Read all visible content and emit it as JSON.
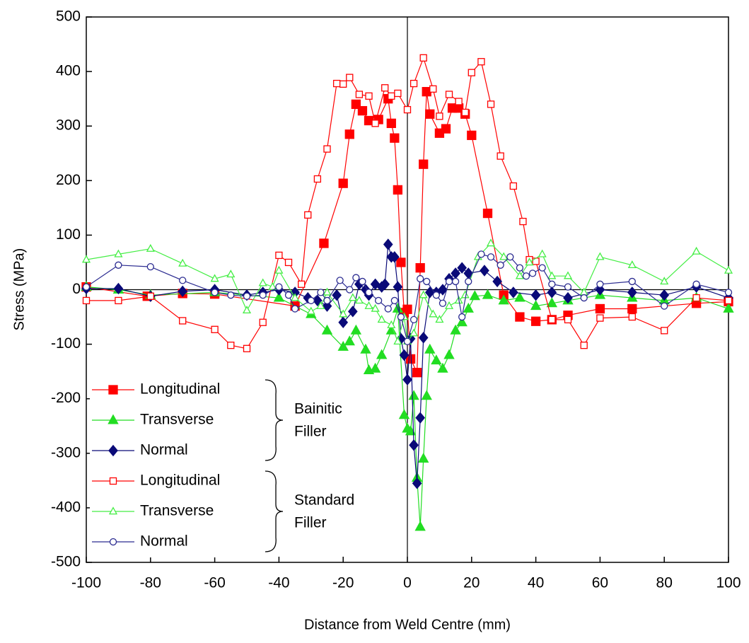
{
  "chart_data": {
    "type": "line",
    "x_label": "Distance from Weld Centre (mm)",
    "y_label": "Stress (MPa)",
    "xlim": [
      -100,
      100
    ],
    "xticks": [
      -100,
      -80,
      -60,
      -40,
      -20,
      0,
      20,
      40,
      60,
      80,
      100
    ],
    "ylim": [
      -500,
      500
    ],
    "yticks": [
      -500,
      -400,
      -300,
      -200,
      -100,
      0,
      100,
      200,
      300,
      400,
      500
    ],
    "legend_groups": [
      {
        "lines": [
          "Bainitic",
          "Filler"
        ],
        "series": [
          0,
          1,
          2
        ]
      },
      {
        "lines": [
          "Standard",
          "Filler"
        ],
        "series": [
          3,
          4,
          5
        ]
      }
    ],
    "series": [
      {
        "name": "Longitudinal",
        "color": "#ff0000",
        "marker": "square",
        "filled": true,
        "x": [
          -100,
          -81,
          -70,
          -60,
          -35,
          -26,
          -20,
          -18,
          -16,
          -14,
          -12,
          -9,
          -6,
          -5,
          -4,
          -3,
          -2,
          -1,
          0,
          1,
          3,
          4,
          5,
          6,
          7,
          10,
          12,
          14,
          16,
          18,
          20,
          25,
          30,
          35,
          40,
          45,
          50,
          60,
          70,
          90,
          100
        ],
        "values": [
          5,
          -12,
          -7,
          -8,
          -30,
          85,
          195,
          285,
          340,
          328,
          310,
          312,
          350,
          305,
          278,
          183,
          50,
          -42,
          -36,
          -127,
          -152,
          40,
          230,
          363,
          322,
          287,
          295,
          333,
          333,
          322,
          283,
          140,
          -10,
          -50,
          -58,
          -55,
          -47,
          -35,
          -35,
          -25,
          -22
        ]
      },
      {
        "name": "Transverse",
        "color": "#22dd22",
        "marker": "triangle",
        "filled": true,
        "x": [
          -100,
          -90,
          -80,
          -60,
          -40,
          -30,
          -25,
          -20,
          -18,
          -16,
          -13,
          -12,
          -10,
          -8,
          -5,
          -3,
          -1,
          0,
          1,
          2,
          3,
          4,
          5,
          6,
          7,
          9,
          11,
          13,
          15,
          17,
          19,
          21,
          25,
          30,
          35,
          40,
          45,
          50,
          60,
          70,
          80,
          90,
          100
        ],
        "values": [
          5,
          0,
          -10,
          -5,
          -15,
          -45,
          -75,
          -105,
          -95,
          -75,
          -110,
          -148,
          -145,
          -120,
          -75,
          -35,
          -230,
          -255,
          -260,
          -195,
          -345,
          -435,
          -310,
          -195,
          -110,
          -130,
          -145,
          -120,
          -75,
          -60,
          -35,
          -12,
          -10,
          -20,
          -15,
          -30,
          -25,
          -20,
          -10,
          -15,
          -20,
          -15,
          -35
        ]
      },
      {
        "name": "Normal",
        "color": "#0a0a78",
        "marker": "diamond",
        "filled": true,
        "x": [
          -100,
          -90,
          -80,
          -70,
          -60,
          -50,
          -45,
          -40,
          -35,
          -31,
          -28,
          -25,
          -22,
          -20,
          -17,
          -15,
          -13,
          -12,
          -10,
          -8,
          -7,
          -6,
          -5,
          -4,
          -3,
          -2,
          -1,
          0,
          1,
          2,
          3,
          4,
          5,
          7,
          9,
          11,
          13,
          15,
          17,
          19,
          24,
          28,
          33,
          40,
          45,
          50,
          60,
          70,
          80,
          90,
          100
        ],
        "values": [
          2,
          2,
          -12,
          -3,
          0,
          -10,
          -5,
          0,
          -5,
          -15,
          -20,
          -30,
          -10,
          -60,
          -40,
          10,
          0,
          -10,
          10,
          5,
          10,
          83,
          60,
          60,
          5,
          -90,
          -120,
          -165,
          -90,
          -285,
          -355,
          -235,
          -88,
          -5,
          -5,
          0,
          20,
          30,
          40,
          30,
          35,
          15,
          -5,
          -10,
          -5,
          -15,
          0,
          -5,
          -10,
          5,
          -15
        ]
      },
      {
        "name": "Longitudinal",
        "color": "#ff0000",
        "marker": "square",
        "filled": false,
        "x": [
          -100,
          -90,
          -80,
          -70,
          -60,
          -55,
          -50,
          -45,
          -40,
          -37,
          -33,
          -31,
          -28,
          -25,
          -22,
          -20,
          -18,
          -15,
          -12,
          -10,
          -7,
          -5,
          -3,
          0,
          2,
          5,
          8,
          10,
          13,
          16,
          18,
          20,
          23,
          26,
          29,
          33,
          36,
          38,
          40,
          45,
          50,
          55,
          60,
          70,
          80,
          90,
          100
        ],
        "values": [
          -20,
          -20,
          -12,
          -57,
          -73,
          -102,
          -108,
          -60,
          63,
          50,
          10,
          137,
          203,
          258,
          378,
          377,
          389,
          358,
          355,
          305,
          370,
          355,
          360,
          330,
          378,
          425,
          368,
          318,
          358,
          345,
          325,
          398,
          418,
          340,
          245,
          190,
          125,
          55,
          52,
          -55,
          -55,
          -102,
          -52,
          -50,
          -75,
          -15,
          -20
        ]
      },
      {
        "name": "Transverse",
        "color": "#44ee44",
        "marker": "triangle",
        "filled": false,
        "x": [
          -100,
          -90,
          -80,
          -70,
          -60,
          -55,
          -50,
          -45,
          -42,
          -40,
          -35,
          -30,
          -27,
          -25,
          -20,
          -17,
          -15,
          -12,
          -10,
          -8,
          -5,
          -3,
          -1,
          0,
          2,
          5,
          8,
          10,
          13,
          16,
          18,
          22,
          26,
          30,
          35,
          38,
          42,
          45,
          50,
          55,
          60,
          70,
          80,
          90,
          100
        ],
        "values": [
          55,
          65,
          75,
          48,
          20,
          28,
          -38,
          12,
          5,
          35,
          -15,
          -40,
          -30,
          -5,
          -45,
          -15,
          -20,
          -30,
          -35,
          -55,
          -65,
          -95,
          -50,
          -95,
          -80,
          -10,
          -45,
          -55,
          -30,
          -20,
          -10,
          60,
          85,
          60,
          25,
          50,
          65,
          25,
          25,
          -5,
          60,
          45,
          15,
          70,
          35
        ]
      },
      {
        "name": "Normal",
        "color": "#2a2a90",
        "marker": "circle",
        "filled": false,
        "x": [
          -100,
          -90,
          -80,
          -70,
          -60,
          -55,
          -50,
          -45,
          -40,
          -37,
          -35,
          -30,
          -27,
          -25,
          -21,
          -18,
          -16,
          -14,
          -12,
          -9,
          -6,
          -4,
          -2,
          0,
          2,
          4,
          6,
          9,
          11,
          13,
          15,
          17,
          19,
          23,
          26,
          29,
          32,
          35,
          37,
          39,
          42,
          45,
          50,
          55,
          60,
          70,
          80,
          90,
          100
        ],
        "values": [
          5,
          45,
          42,
          17,
          -5,
          -10,
          -12,
          -10,
          5,
          -10,
          -35,
          -20,
          -5,
          -20,
          17,
          0,
          22,
          15,
          -5,
          -20,
          -35,
          -20,
          -50,
          -95,
          -55,
          20,
          15,
          -10,
          -25,
          15,
          15,
          -50,
          15,
          65,
          60,
          45,
          60,
          40,
          25,
          30,
          40,
          10,
          5,
          -15,
          10,
          15,
          -30,
          10,
          -5
        ]
      }
    ]
  }
}
